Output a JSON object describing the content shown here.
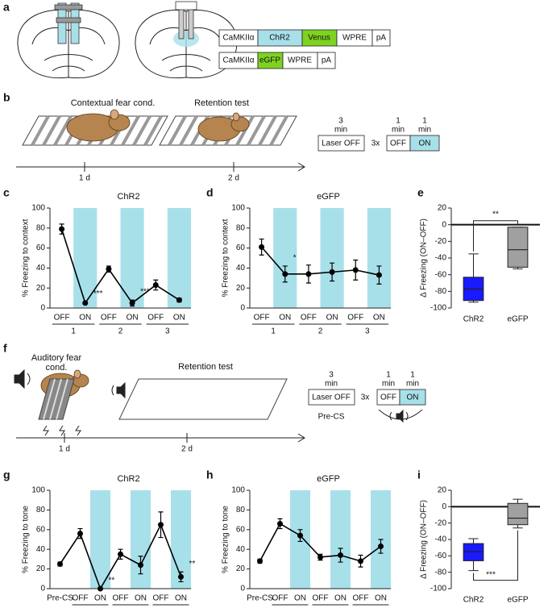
{
  "panel_labels": [
    "a",
    "b",
    "c",
    "d",
    "e",
    "f",
    "g",
    "h",
    "i"
  ],
  "constructs": [
    [
      "CaMKIIα",
      "ChR2",
      "Venus",
      "WPRE",
      "pA"
    ],
    [
      "CaMKIIα",
      "eGFP",
      "WPRE",
      "pA"
    ]
  ],
  "context_protocol": {
    "conditioning": "Contextual fear cond.",
    "retention": "Retention test",
    "days": [
      "1 d",
      "2 d"
    ],
    "off_time": [
      "3",
      "min"
    ],
    "laser_off": "Laser OFF",
    "repeat": "3x",
    "block_times": [
      [
        "1",
        "min"
      ],
      [
        "1",
        "min"
      ]
    ],
    "off": "OFF",
    "on": "ON"
  },
  "tone_protocol": {
    "conditioning": [
      "Auditory fear",
      "cond."
    ],
    "retention": "Retention test",
    "days": [
      "1 d",
      "2 d"
    ],
    "off_time": [
      "3",
      "min"
    ],
    "laser_off": "Laser OFF",
    "pre_cs": "Pre-CS",
    "repeat": "3x",
    "block_times": [
      [
        "1",
        "min"
      ],
      [
        "1",
        "min"
      ]
    ],
    "off": "OFF",
    "on": "ON"
  },
  "chart_data": [
    {
      "type": "line",
      "title": "ChR2",
      "y_label": "% Freezing to context",
      "categories": [
        "OFF",
        "ON",
        "OFF",
        "ON",
        "OFF",
        "ON"
      ],
      "groups": [
        "1",
        "2",
        "3"
      ],
      "values": [
        79,
        5,
        39,
        5,
        23,
        8
      ],
      "errors": [
        5,
        1,
        3,
        3,
        5,
        2
      ],
      "color": "#000000",
      "shade_color": "#a8e0ea",
      "ylim": [
        0,
        100
      ],
      "yticks": [
        0,
        20,
        40,
        60,
        80,
        100
      ],
      "annotations": [
        {
          "index": 1,
          "text": "***"
        },
        {
          "index": 3,
          "text": "***"
        }
      ]
    },
    {
      "type": "line",
      "title": "eGFP",
      "y_label": "% Freezing to context",
      "categories": [
        "OFF",
        "ON",
        "OFF",
        "ON",
        "OFF",
        "ON"
      ],
      "groups": [
        "1",
        "2",
        "3"
      ],
      "values": [
        61,
        34,
        34,
        36,
        38,
        33
      ],
      "errors": [
        8,
        8,
        9,
        9,
        10,
        9
      ],
      "color": "#000000",
      "shade_color": "#a8e0ea",
      "ylim": [
        0,
        100
      ],
      "yticks": [
        0,
        20,
        40,
        60,
        80,
        100
      ],
      "annotations": [
        {
          "index": 1,
          "text": "*"
        }
      ]
    },
    {
      "type": "box",
      "y_label": "Δ Freezing (ON–OFF)",
      "categories": [
        "ChR2",
        "eGFP"
      ],
      "colors": [
        "#1a1aff",
        "#a0a0a0"
      ],
      "boxes": [
        {
          "min": -93,
          "q1": -91,
          "median": -77,
          "q3": -63,
          "max": -35
        },
        {
          "min": -53,
          "q1": -51,
          "median": -30,
          "q3": -3,
          "max": -3
        }
      ],
      "ylim": [
        -100,
        20
      ],
      "yticks": [
        -100,
        -80,
        -60,
        -40,
        -20,
        0,
        20
      ],
      "bracket": "above",
      "annotations": [
        {
          "text": "**"
        }
      ]
    },
    {
      "type": "line",
      "title": "ChR2",
      "y_label": "% Freezing to tone",
      "categories": [
        "Pre-CS",
        "OFF",
        "ON",
        "OFF",
        "ON",
        "OFF",
        "ON"
      ],
      "groups": [
        "1",
        "2",
        "3"
      ],
      "values": [
        25,
        56,
        0,
        35,
        24,
        65,
        12
      ],
      "errors": [
        2,
        5,
        0,
        5,
        9,
        13,
        5
      ],
      "color": "#000000",
      "shade_color": "#a8e0ea",
      "ylim": [
        0,
        100
      ],
      "yticks": [
        0,
        20,
        40,
        60,
        80,
        100
      ],
      "annotations": [
        {
          "index": 2,
          "text": "**"
        },
        {
          "index": 6,
          "text": "**"
        }
      ]
    },
    {
      "type": "line",
      "title": "eGFP",
      "y_label": "% Freezing to tone",
      "categories": [
        "Pre-CS",
        "OFF",
        "ON",
        "OFF",
        "ON",
        "OFF",
        "ON"
      ],
      "groups": [
        "1",
        "2",
        "3"
      ],
      "values": [
        28,
        66,
        54,
        32,
        34,
        28,
        43
      ],
      "errors": [
        2,
        5,
        6,
        3,
        7,
        6,
        7
      ],
      "color": "#000000",
      "shade_color": "#a8e0ea",
      "ylim": [
        0,
        100
      ],
      "yticks": [
        0,
        20,
        40,
        60,
        80,
        100
      ],
      "annotations": []
    },
    {
      "type": "box",
      "y_label": "Δ Freezing (ON–OFF)",
      "categories": [
        "ChR2",
        "eGFP"
      ],
      "colors": [
        "#1a1aff",
        "#a0a0a0"
      ],
      "boxes": [
        {
          "min": -78,
          "q1": -66,
          "median": -55,
          "q3": -45,
          "max": -39
        },
        {
          "min": -26,
          "q1": -22,
          "median": -14,
          "q3": 4,
          "max": 9
        }
      ],
      "ylim": [
        -100,
        20
      ],
      "yticks": [
        -100,
        -80,
        -60,
        -40,
        -20,
        0,
        20
      ],
      "bracket": "below",
      "annotations": [
        {
          "text": "***"
        }
      ]
    }
  ]
}
